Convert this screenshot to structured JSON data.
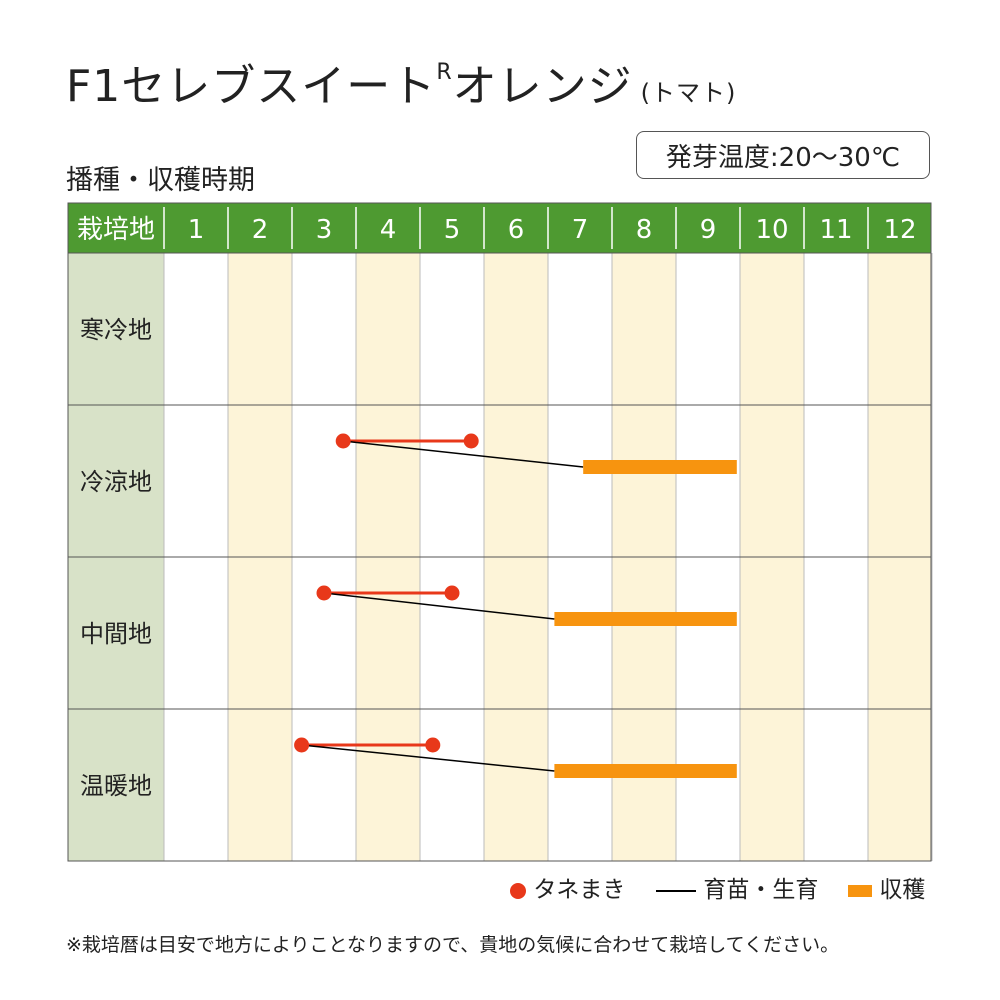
{
  "header": {
    "title_main": "F1セレブスイート",
    "title_reg": "R",
    "title_rest": "オレンジ",
    "title_sub": "(トマト)",
    "section_title": "播種・収穫時期",
    "temperature": "発芽温度:20～30℃"
  },
  "colors": {
    "header_bg": "#4e9a31",
    "label_bg": "#d8e2c8",
    "stripe": "#fdf4d8",
    "sow": "#e8381a",
    "harvest": "#f7940f",
    "grow": "#000000"
  },
  "chart_data": {
    "type": "gantt",
    "corner_label": "栽培地",
    "months": [
      "1",
      "2",
      "3",
      "4",
      "5",
      "6",
      "7",
      "8",
      "9",
      "10",
      "11",
      "12"
    ],
    "regions": [
      {
        "name": "寒冷地",
        "sow": null,
        "harvest": null
      },
      {
        "name": "冷涼地",
        "sow": [
          3.8,
          5.8
        ],
        "harvest": [
          7.55,
          9.95
        ]
      },
      {
        "name": "中間地",
        "sow": [
          3.5,
          5.5
        ],
        "harvest": [
          7.1,
          9.95
        ]
      },
      {
        "name": "温暖地",
        "sow": [
          3.15,
          5.2
        ],
        "harvest": [
          7.1,
          9.95
        ]
      }
    ],
    "legend": {
      "sow": "タネまき",
      "grow": "育苗・生育",
      "harvest": "収穫"
    }
  },
  "note": "※栽培暦は目安で地方によりことなりますので、貴地の気候に合わせて栽培してください。"
}
